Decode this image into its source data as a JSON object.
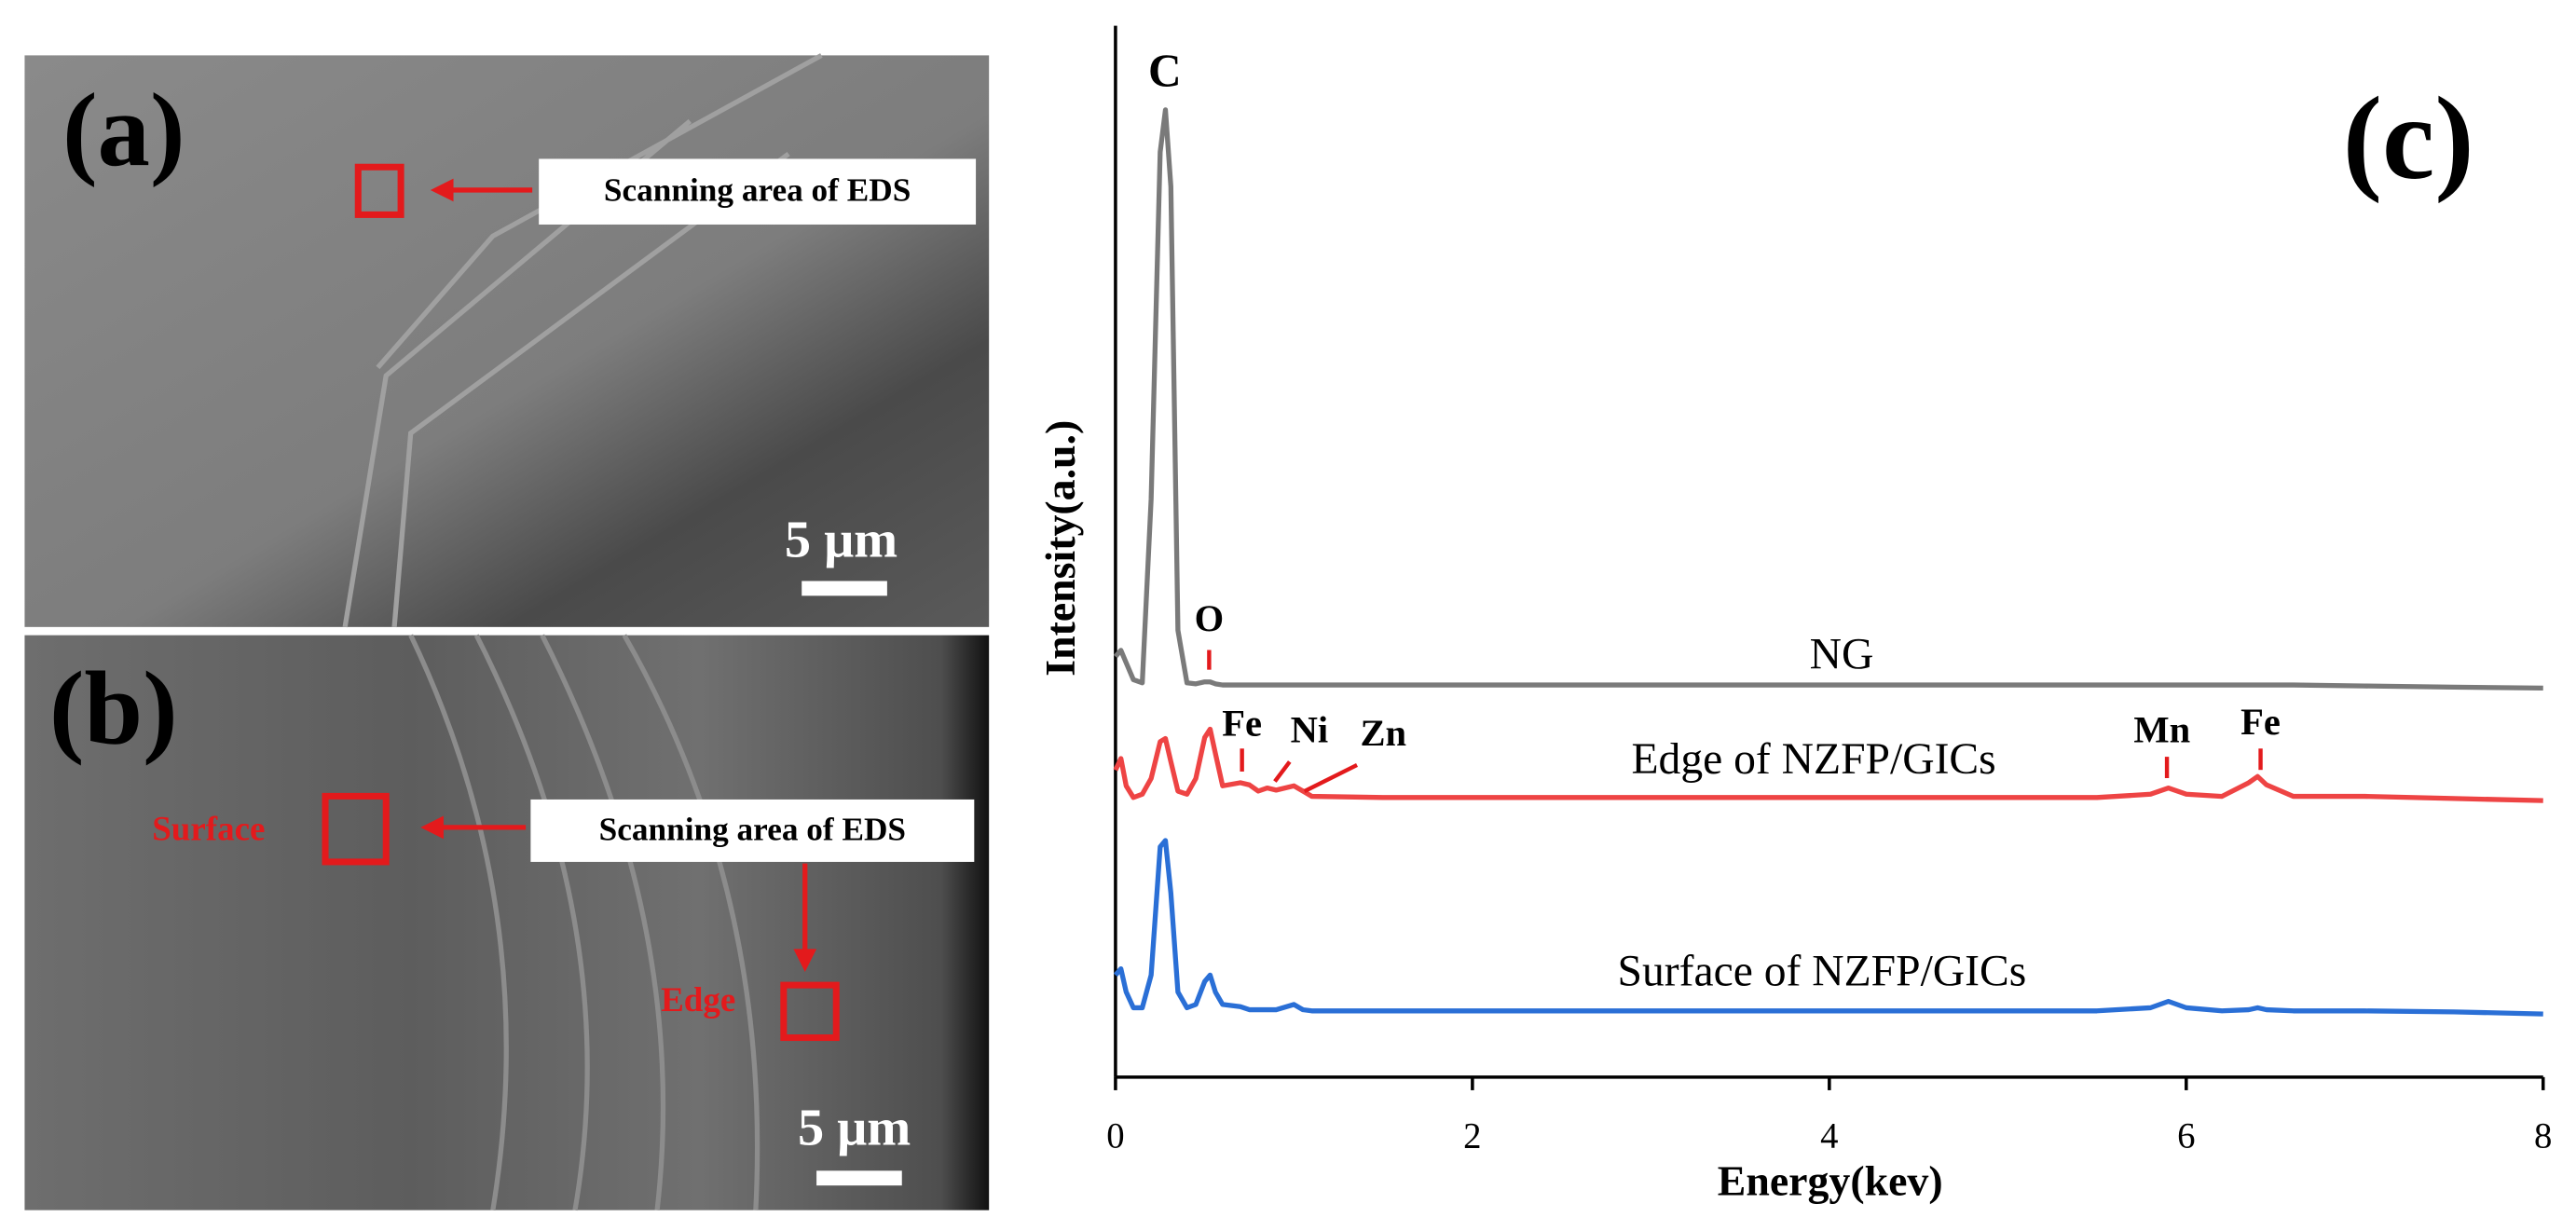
{
  "panels": [
    {
      "label": "(a)",
      "callout": "Scanning area of EDS",
      "scale_bar": "5 μm"
    },
    {
      "label": "(b)",
      "callout": "Scanning area of EDS",
      "scale_bar": "5 μm",
      "regions": [
        "Surface",
        "Edge"
      ]
    }
  ],
  "chart_data": {
    "type": "line",
    "label": "(c)",
    "x_label": "Energy(kev)",
    "y_label": "Intensity(a.u.)",
    "xlim": [
      0,
      8
    ],
    "xticks": [
      0,
      2,
      4,
      6,
      8
    ],
    "ylim": [
      0,
      100
    ],
    "annotations": [
      "C",
      "O",
      "Fe",
      "Ni",
      "Zn",
      "Mn",
      "Fe"
    ],
    "x": [
      0,
      0.03,
      0.06,
      0.1,
      0.15,
      0.2,
      0.25,
      0.28,
      0.31,
      0.35,
      0.4,
      0.45,
      0.5,
      0.53,
      0.56,
      0.6,
      0.7,
      0.75,
      0.8,
      0.85,
      0.9,
      1.0,
      1.05,
      1.1,
      1.5,
      2,
      3,
      4,
      5,
      5.5,
      5.8,
      5.9,
      6.0,
      6.2,
      6.35,
      6.4,
      6.45,
      6.6,
      7,
      7.5,
      8
    ],
    "series": [
      {
        "name": "NG",
        "color": "#7a7a7a",
        "values": [
          40,
          40.6,
          39.4,
          37.8,
          37.5,
          55,
          88,
          92,
          84.7,
          42.5,
          37.5,
          37.4,
          37.6,
          37.6,
          37.4,
          37.3,
          37.3,
          37.3,
          37.3,
          37.3,
          37.3,
          37.3,
          37.3,
          37.3,
          37.3,
          37.3,
          37.3,
          37.3,
          37.3,
          37.3,
          37.3,
          37.3,
          37.3,
          37.3,
          37.3,
          37.3,
          37.3,
          37.3,
          37.2,
          37.1,
          37
        ]
      },
      {
        "name": "Edge of NZFP/GICs",
        "color": "#ee4444",
        "values": [
          29.2,
          30.3,
          27.7,
          26.6,
          26.9,
          28.4,
          31.9,
          32.2,
          30,
          27.2,
          26.9,
          28.4,
          32.3,
          33.1,
          30.8,
          27.7,
          28,
          27.8,
          27.2,
          27.5,
          27.3,
          27.7,
          27.2,
          26.7,
          26.6,
          26.6,
          26.6,
          26.6,
          26.6,
          26.6,
          26.9,
          27.5,
          26.9,
          26.7,
          28,
          28.6,
          27.8,
          26.7,
          26.7,
          26.5,
          26.3
        ]
      },
      {
        "name": "Surface of NZFP/GICs",
        "color": "#2a6fd6",
        "values": [
          9.7,
          10.3,
          8.1,
          6.6,
          6.6,
          9.7,
          21.9,
          22.5,
          17.5,
          8.1,
          6.6,
          6.9,
          9.1,
          9.7,
          8.1,
          6.9,
          6.7,
          6.4,
          6.4,
          6.4,
          6.4,
          6.9,
          6.4,
          6.3,
          6.3,
          6.3,
          6.3,
          6.3,
          6.3,
          6.3,
          6.6,
          7.2,
          6.6,
          6.3,
          6.4,
          6.6,
          6.4,
          6.3,
          6.3,
          6.2,
          6
        ]
      }
    ]
  }
}
